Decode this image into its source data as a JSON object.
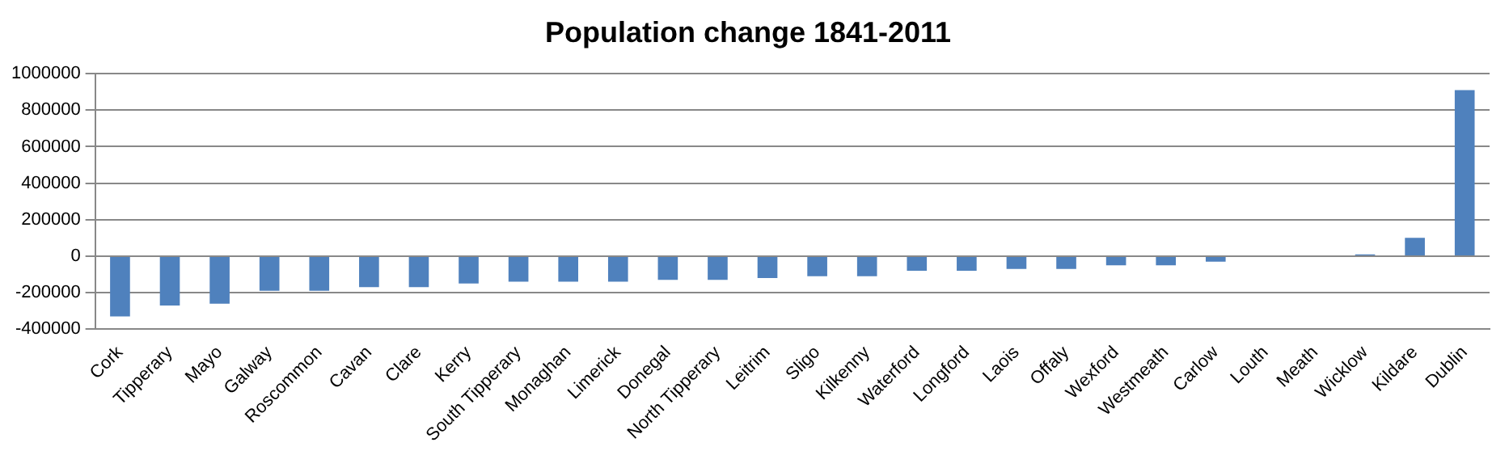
{
  "chart_data": {
    "type": "bar",
    "title": "Population change 1841-2011",
    "categories": [
      "Cork",
      "Tipperary",
      "Mayo",
      "Galway",
      "Roscommon",
      "Cavan",
      "Clare",
      "Kerry",
      "South Tipperary",
      "Monaghan",
      "Limerick",
      "Donegal",
      "North Tipperary",
      "Leitrim",
      "Sligo",
      "Kilkenny",
      "Waterford",
      "Longford",
      "Laois",
      "Offaly",
      "Wexford",
      "Westmeath",
      "Carlow",
      "Louth",
      "Meath",
      "Wicklow",
      "Kildare",
      "Dublin"
    ],
    "values": [
      -330000,
      -270000,
      -260000,
      -190000,
      -190000,
      -170000,
      -170000,
      -150000,
      -140000,
      -140000,
      -140000,
      -130000,
      -130000,
      -120000,
      -110000,
      -110000,
      -80000,
      -80000,
      -70000,
      -70000,
      -50000,
      -50000,
      -30000,
      0,
      0,
      10000,
      100000,
      910000
    ],
    "color": "#4f81bd",
    "ylim": [
      -400000,
      1000000
    ],
    "yticks": [
      -400000,
      -200000,
      0,
      200000,
      400000,
      600000,
      800000,
      1000000
    ],
    "grid": "y"
  }
}
